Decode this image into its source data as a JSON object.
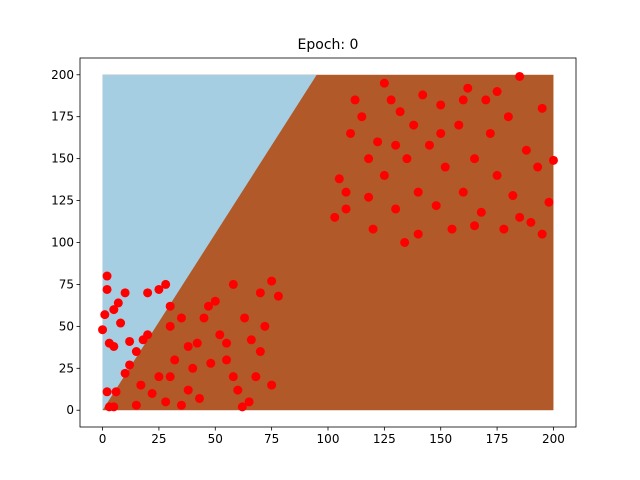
{
  "chart_data": {
    "type": "scatter",
    "title": "Epoch: 0",
    "xlim": [
      -10,
      210
    ],
    "ylim": [
      -10,
      210
    ],
    "xticks": [
      0,
      25,
      50,
      75,
      100,
      125,
      150,
      175,
      200
    ],
    "yticks": [
      0,
      25,
      50,
      75,
      100,
      125,
      150,
      175,
      200
    ],
    "region_extent": [
      0,
      200,
      0,
      200
    ],
    "decision_boundary": {
      "x": [
        0,
        95
      ],
      "y": [
        0,
        200
      ]
    },
    "region_colors": {
      "above": "#a6cee3",
      "below": "#b15928"
    },
    "series": [
      {
        "color": "#ff0000",
        "x": [
          0,
          1,
          2,
          2,
          3,
          5,
          5,
          7,
          10,
          8,
          3,
          5,
          2,
          6,
          10,
          12,
          15,
          18,
          20,
          20,
          25,
          28,
          30,
          30,
          35,
          32,
          25,
          22,
          28,
          35,
          38,
          40,
          42,
          45,
          47,
          50,
          52,
          55,
          58,
          60,
          62,
          65,
          68,
          70,
          72,
          75,
          78,
          70,
          63,
          58,
          48,
          43,
          15,
          17,
          12,
          38,
          55,
          66,
          75,
          30,
          103,
          105,
          108,
          110,
          112,
          115,
          118,
          120,
          122,
          125,
          128,
          130,
          132,
          134,
          135,
          138,
          140,
          142,
          145,
          148,
          150,
          152,
          155,
          158,
          160,
          162,
          165,
          168,
          170,
          172,
          175,
          178,
          180,
          182,
          185,
          188,
          190,
          193,
          195,
          198,
          200,
          185,
          165,
          150,
          125,
          118,
          108,
          140,
          160,
          175,
          195,
          130
        ],
        "values": [
          48,
          57,
          80,
          72,
          40,
          38,
          60,
          64,
          70,
          52,
          2,
          2,
          11,
          11,
          22,
          41,
          35,
          42,
          45,
          70,
          72,
          75,
          50,
          62,
          55,
          30,
          20,
          10,
          5,
          3,
          12,
          25,
          40,
          55,
          62,
          65,
          45,
          30,
          20,
          12,
          2,
          5,
          20,
          35,
          50,
          77,
          68,
          70,
          55,
          75,
          28,
          7,
          3,
          15,
          27,
          38,
          40,
          42,
          15,
          20,
          115,
          138,
          130,
          165,
          185,
          175,
          150,
          108,
          160,
          140,
          185,
          120,
          178,
          100,
          150,
          170,
          130,
          188,
          158,
          122,
          182,
          145,
          108,
          170,
          130,
          192,
          150,
          118,
          185,
          165,
          140,
          108,
          175,
          128,
          199,
          155,
          112,
          145,
          180,
          124,
          149,
          115,
          110,
          165,
          195,
          127,
          120,
          105,
          185,
          190,
          105,
          158
        ]
      }
    ]
  }
}
